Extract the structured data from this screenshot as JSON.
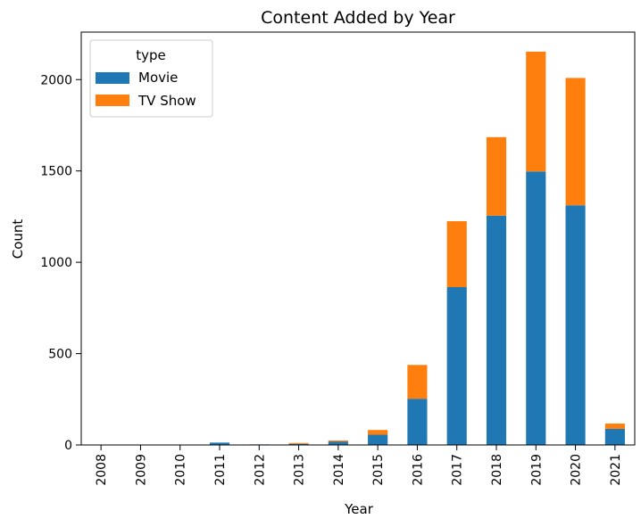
{
  "chart_data": {
    "type": "bar",
    "stacked": true,
    "title": "Content Added by Year",
    "xlabel": "Year",
    "ylabel": "Count",
    "categories": [
      "2008",
      "2009",
      "2010",
      "2011",
      "2012",
      "2013",
      "2014",
      "2015",
      "2016",
      "2017",
      "2018",
      "2019",
      "2020",
      "2021"
    ],
    "series": [
      {
        "name": "Movie",
        "color": "#1f77b4",
        "values": [
          1,
          2,
          1,
          13,
          3,
          6,
          19,
          56,
          253,
          864,
          1255,
          1497,
          1312,
          88
        ]
      },
      {
        "name": "TV Show",
        "color": "#ff7f0e",
        "values": [
          1,
          0,
          0,
          0,
          0,
          5,
          6,
          26,
          185,
          361,
          430,
          656,
          697,
          29
        ]
      }
    ],
    "ylim": [
      0,
      2260
    ],
    "yticks": [
      0,
      500,
      1000,
      1500,
      2000
    ],
    "legend": {
      "title": "type",
      "placement": "top-left"
    },
    "grid": false
  }
}
